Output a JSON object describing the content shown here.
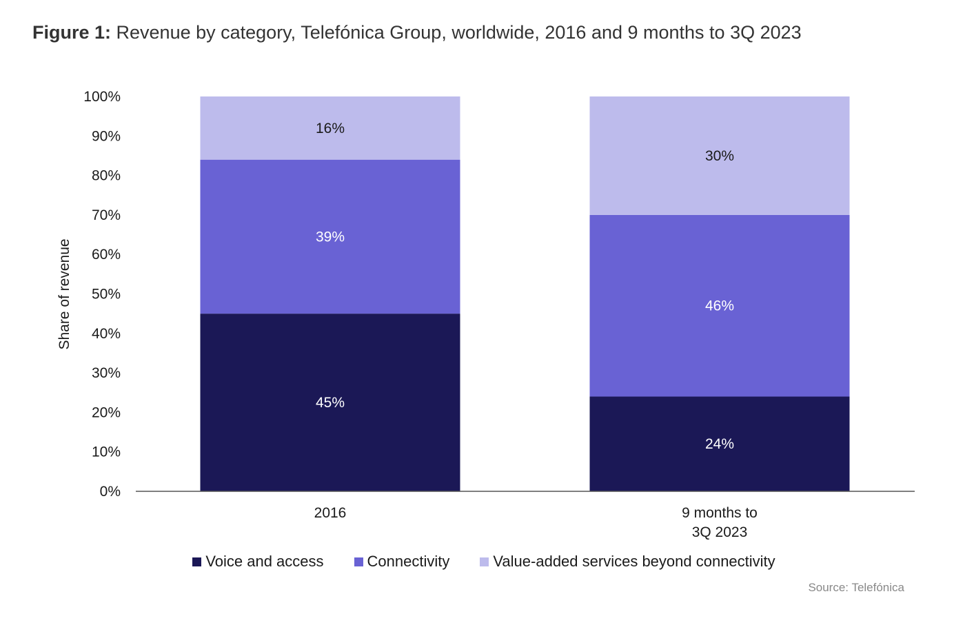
{
  "title": {
    "prefix": "Figure 1:",
    "text": "Revenue by category, Telefónica Group, worldwide, 2016 and 9 months to 3Q 2023"
  },
  "source": "Source: Telefónica",
  "chart_data": {
    "type": "bar",
    "stacked": true,
    "categories": [
      [
        "2016"
      ],
      [
        "9 months to",
        "3Q 2023"
      ]
    ],
    "series": [
      {
        "name": "Voice and access",
        "color": "#1b1856",
        "label_color": "#ffffff",
        "values": [
          45,
          24
        ]
      },
      {
        "name": "Connectivity",
        "color": "#6962d4",
        "label_color": "#ffffff",
        "values": [
          39,
          46
        ]
      },
      {
        "name": "Value-added services beyond connectivity",
        "color": "#bdbbec",
        "label_color": "#1a1a1a",
        "values": [
          16,
          30
        ]
      }
    ],
    "ylabel": "Share of revenue",
    "ylim": [
      0,
      100
    ],
    "yticks": [
      "0%",
      "10%",
      "20%",
      "30%",
      "40%",
      "50%",
      "60%",
      "70%",
      "80%",
      "90%",
      "100%"
    ],
    "grid": false,
    "legend": "bottom"
  }
}
